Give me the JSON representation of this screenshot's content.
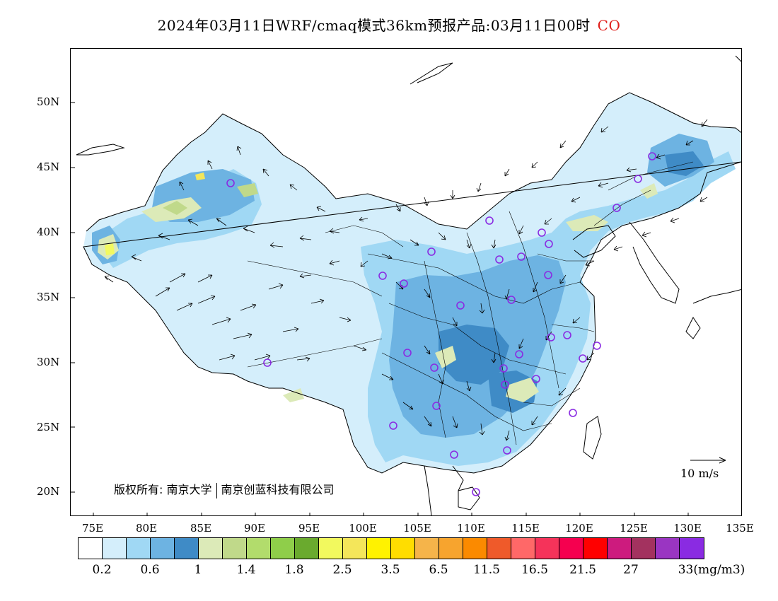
{
  "title": {
    "main": "2024年03月11日WRF/cmaq模式36km预报产品:03月11日00时",
    "species": "CO",
    "species_color": "#e0201c"
  },
  "axes": {
    "lat_labels": [
      "50N",
      "45N",
      "40N",
      "35N",
      "30N",
      "25N",
      "20N"
    ],
    "lon_labels": [
      "75E",
      "80E",
      "85E",
      "90E",
      "95E",
      "100E",
      "105E",
      "110E",
      "115E",
      "120E",
      "125E",
      "130E",
      "135E"
    ]
  },
  "copyright": {
    "prefix": "版权所有:",
    "org1": "南京大学",
    "org2": "南京创蓝科技有限公司"
  },
  "wind_reference": {
    "label": "10 m/s"
  },
  "legend": {
    "colors": [
      "#ffffff",
      "#d4eefb",
      "#a0d8f4",
      "#6db3e2",
      "#3f8bc6",
      "#dceab8",
      "#c0d98a",
      "#b2dc6c",
      "#8fce4a",
      "#6aaa2e",
      "#f2f95e",
      "#f4e65a",
      "#fff200",
      "#ffdd00",
      "#f5b44a",
      "#f7a42e",
      "#fb8a00",
      "#ef5a2a",
      "#ff6868",
      "#f5335a",
      "#f5004f",
      "#ff0000",
      "#cd1b7e",
      "#a3325f",
      "#9a35c2",
      "#8a2be2"
    ],
    "labels": [
      "0.2",
      "0.6",
      "1",
      "1.4",
      "1.8",
      "2.5",
      "3.5",
      "6.5",
      "11.5",
      "16.5",
      "21.5",
      "27",
      "33(mg/m3)"
    ]
  },
  "sites": 40
}
